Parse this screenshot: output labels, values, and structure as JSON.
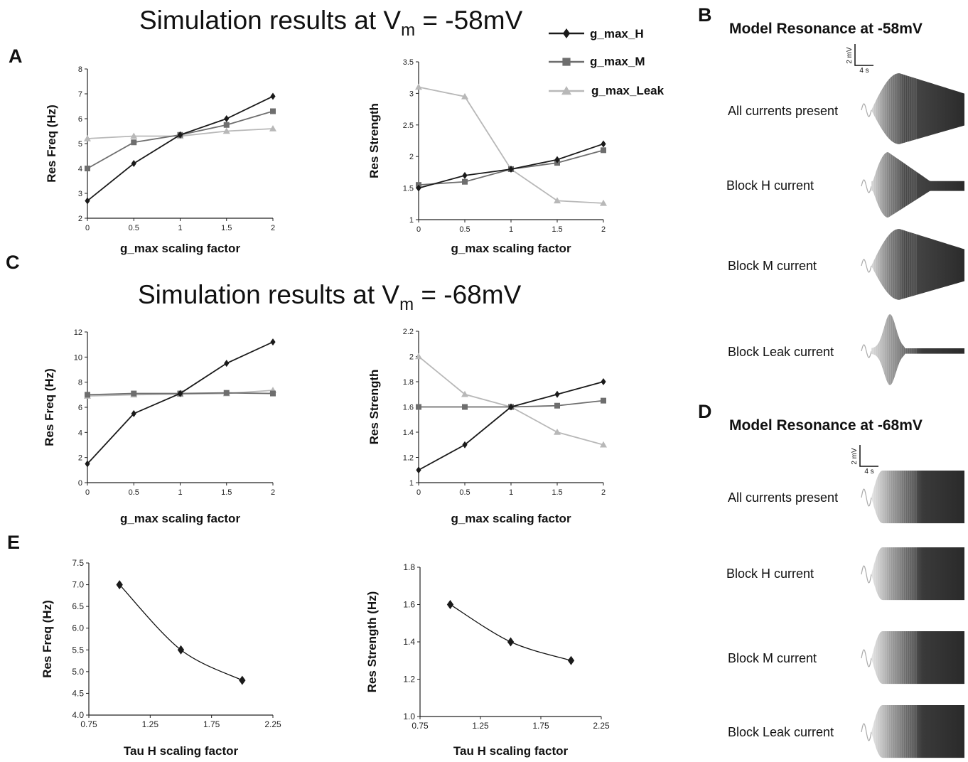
{
  "panels": {
    "A": "A",
    "B": "B",
    "C": "C",
    "D": "D",
    "E": "E"
  },
  "titles": {
    "sim58_prefix": "Simulation results at V",
    "sim58_sub": "m",
    "sim58_suffix": " = -58mV",
    "sim68_prefix": "Simulation results at V",
    "sim68_sub": "m",
    "sim68_suffix": " = -68mV"
  },
  "legend": {
    "entries": [
      {
        "name": "g_max_H",
        "color": "#1a1a1a",
        "marker": "diamond"
      },
      {
        "name": "g_max_M",
        "color": "#6e6e6e",
        "marker": "square"
      },
      {
        "name": "g_max_Leak",
        "color": "#b8b8b8",
        "marker": "triangle"
      }
    ]
  },
  "chart_data": [
    {
      "id": "A-freq",
      "type": "line",
      "xlabel": "g_max scaling factor",
      "ylabel": "Res Freq (Hz)",
      "xlim": [
        0,
        2
      ],
      "ylim": [
        2,
        8
      ],
      "xticks": [
        "0",
        "0.5",
        "1",
        "1.5",
        "2"
      ],
      "yticks": [
        "2",
        "3",
        "4",
        "5",
        "6",
        "7",
        "8"
      ],
      "x": [
        0,
        0.5,
        1,
        1.5,
        2
      ],
      "series": [
        {
          "name": "g_max_H",
          "values": [
            2.7,
            4.2,
            5.35,
            6.0,
            6.9
          ]
        },
        {
          "name": "g_max_M",
          "values": [
            4.0,
            5.05,
            5.35,
            5.75,
            6.3
          ]
        },
        {
          "name": "g_max_Leak",
          "values": [
            5.2,
            5.3,
            5.3,
            5.5,
            5.6
          ]
        }
      ]
    },
    {
      "id": "A-strength",
      "type": "line",
      "xlabel": "g_max scaling factor",
      "ylabel": "Res Strength",
      "xlim": [
        0,
        2
      ],
      "ylim": [
        1,
        3.5
      ],
      "xticks": [
        "0",
        "0.5",
        "1",
        "1.5",
        "2"
      ],
      "yticks": [
        "1",
        "1.5",
        "2",
        "2.5",
        "3",
        "3.5"
      ],
      "x": [
        0,
        0.5,
        1,
        1.5,
        2
      ],
      "series": [
        {
          "name": "g_max_H",
          "values": [
            1.5,
            1.7,
            1.8,
            1.95,
            2.2
          ]
        },
        {
          "name": "g_max_M",
          "values": [
            1.55,
            1.6,
            1.8,
            1.9,
            2.1
          ]
        },
        {
          "name": "g_max_Leak",
          "values": [
            3.1,
            2.95,
            1.8,
            1.3,
            1.26
          ]
        }
      ]
    },
    {
      "id": "C-freq",
      "type": "line",
      "xlabel": "g_max scaling factor",
      "ylabel": "Res Freq (Hz)",
      "xlim": [
        0,
        2
      ],
      "ylim": [
        0,
        12
      ],
      "xticks": [
        "0",
        "0.5",
        "1",
        "1.5",
        "2"
      ],
      "yticks": [
        "0",
        "2",
        "4",
        "6",
        "8",
        "10",
        "12"
      ],
      "x": [
        0,
        0.5,
        1,
        1.5,
        2
      ],
      "series": [
        {
          "name": "g_max_H",
          "values": [
            1.5,
            5.5,
            7.1,
            9.5,
            11.2
          ]
        },
        {
          "name": "g_max_M",
          "values": [
            7.0,
            7.1,
            7.1,
            7.15,
            7.1
          ]
        },
        {
          "name": "g_max_Leak",
          "values": [
            6.9,
            7.0,
            7.05,
            7.1,
            7.35
          ]
        }
      ]
    },
    {
      "id": "C-strength",
      "type": "line",
      "xlabel": "g_max scaling factor",
      "ylabel": "Res Strength",
      "xlim": [
        0,
        2
      ],
      "ylim": [
        1,
        2.2
      ],
      "xticks": [
        "0",
        "0.5",
        "1",
        "1.5",
        "2"
      ],
      "yticks": [
        "1",
        "1.2",
        "1.4",
        "1.6",
        "1.8",
        "2",
        "2.2"
      ],
      "x": [
        0,
        0.5,
        1,
        1.5,
        2
      ],
      "series": [
        {
          "name": "g_max_H",
          "values": [
            1.1,
            1.3,
            1.6,
            1.7,
            1.8
          ]
        },
        {
          "name": "g_max_M",
          "values": [
            1.6,
            1.6,
            1.6,
            1.61,
            1.65
          ]
        },
        {
          "name": "g_max_Leak",
          "values": [
            2.0,
            1.7,
            1.6,
            1.4,
            1.3
          ]
        }
      ]
    },
    {
      "id": "E-freq",
      "type": "scatter",
      "xlabel": "Tau H scaling factor",
      "ylabel": "Res Freq (Hz)",
      "xlim": [
        0.75,
        2.25
      ],
      "ylim": [
        4.0,
        7.5
      ],
      "xticks": [
        "0.75",
        "1.25",
        "1.75",
        "2.25"
      ],
      "yticks": [
        "4.0",
        "4.5",
        "5.0",
        "5.5",
        "6.0",
        "6.5",
        "7.0",
        "7.5"
      ],
      "x": [
        1,
        1.5,
        2
      ],
      "series": [
        {
          "values": [
            7.0,
            5.5,
            4.8
          ]
        }
      ]
    },
    {
      "id": "E-strength",
      "type": "scatter",
      "xlabel": "Tau H scaling factor",
      "ylabel": "Res Strength (Hz)",
      "xlim": [
        0.75,
        2.25
      ],
      "ylim": [
        1.0,
        1.8
      ],
      "xticks": [
        "0.75",
        "1.25",
        "1.75",
        "2.25"
      ],
      "yticks": [
        "1.0",
        "1.2",
        "1.4",
        "1.6",
        "1.8"
      ],
      "x": [
        1,
        1.5,
        2
      ],
      "series": [
        {
          "values": [
            1.6,
            1.4,
            1.3
          ]
        }
      ]
    }
  ],
  "model_B": {
    "title": "Model Resonance at -58mV",
    "scale_v": "2 mV",
    "scale_t": "4 s",
    "traces": [
      {
        "label": "All currents present",
        "type": "a"
      },
      {
        "label": "Block H current",
        "type": "b"
      },
      {
        "label": "Block M current",
        "type": "a"
      },
      {
        "label": "Block Leak current",
        "type": "c"
      }
    ]
  },
  "model_D": {
    "title": "Model Resonance at -68mV",
    "scale_v": "2 mV",
    "scale_t": "4 s",
    "traces": [
      {
        "label": "All currents present",
        "type": "d"
      },
      {
        "label": "Block H current",
        "type": "d"
      },
      {
        "label": "Block M current",
        "type": "d"
      },
      {
        "label": "Block Leak current",
        "type": "d"
      }
    ]
  }
}
